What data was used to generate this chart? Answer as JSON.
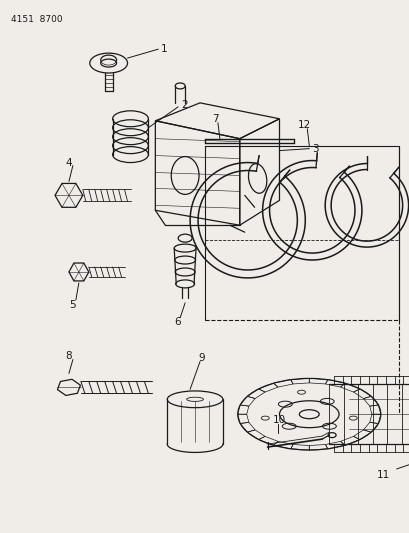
{
  "bg_color": "#f0ede8",
  "line_color": "#1a1a1a",
  "header_text": "4151  8700",
  "header_fontsize": 6.5,
  "label_fontsize": 7.5
}
